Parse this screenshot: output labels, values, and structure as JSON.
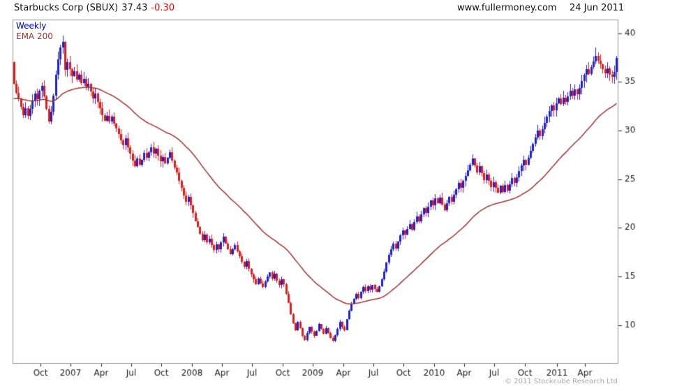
{
  "header": {
    "name": "Starbucks Corp (SBUX)",
    "price": "37.43",
    "change": "-0.30",
    "site": "www.fullermoney.com",
    "date": "24 Jun 2011"
  },
  "legend": {
    "timeframe": "Weekly",
    "ema_label": "EMA 200"
  },
  "footer": {
    "copyright": "© 2011 Stockcube Research Ltd"
  },
  "chart_data": {
    "type": "candlestick",
    "title": "Starbucks Corp (SBUX)",
    "symbol": "SBUX",
    "timeframe": "weekly",
    "last_price": 37.43,
    "change": -0.3,
    "grid": false,
    "y_axis": {
      "side": "right",
      "ticks": [
        40,
        35,
        30,
        25,
        20,
        15,
        10
      ],
      "min": 6.1,
      "max": 41.4
    },
    "x_axis": {
      "ticks": [
        [
          "Oct",
          12
        ],
        [
          "2007",
          25
        ],
        [
          "Apr",
          38
        ],
        [
          "Jul",
          51
        ],
        [
          "Oct",
          64
        ],
        [
          "2008",
          77
        ],
        [
          "Apr",
          90
        ],
        [
          "Jul",
          103
        ],
        [
          "Oct",
          116
        ],
        [
          "2009",
          129
        ],
        [
          "Apr",
          142
        ],
        [
          "Jul",
          155
        ],
        [
          "Oct",
          168
        ],
        [
          "2010",
          181
        ],
        [
          "Apr",
          194
        ],
        [
          "Jul",
          207
        ],
        [
          "Oct",
          220
        ],
        [
          "2011",
          234
        ],
        [
          "Apr",
          246
        ]
      ]
    },
    "first_open": 37.0,
    "weekly_closes": [
      34.8,
      33.9,
      33.2,
      32.4,
      31.6,
      32.3,
      31.5,
      32.2,
      33.0,
      33.8,
      33.2,
      34.1,
      34.6,
      33.5,
      32.2,
      30.9,
      31.9,
      33.6,
      35.7,
      37.3,
      38.5,
      39.1,
      36.2,
      37.0,
      36.3,
      35.6,
      36.1,
      35.2,
      35.7,
      34.9,
      35.3,
      34.5,
      34.8,
      34.0,
      33.3,
      33.8,
      32.9,
      32.3,
      31.6,
      31.0,
      31.5,
      30.9,
      31.4,
      30.7,
      30.2,
      29.6,
      29.0,
      28.5,
      29.2,
      28.3,
      27.6,
      26.9,
      26.3,
      27.1,
      26.5,
      27.0,
      27.7,
      27.2,
      27.8,
      28.3,
      27.6,
      28.1,
      27.4,
      26.8,
      27.3,
      26.6,
      27.2,
      27.8,
      26.9,
      26.2,
      25.7,
      24.8,
      24.1,
      23.3,
      22.7,
      23.2,
      22.3,
      21.5,
      20.7,
      20.1,
      19.4,
      18.7,
      19.3,
      18.5,
      18.9,
      18.2,
      17.7,
      18.3,
      17.8,
      18.5,
      19.1,
      18.4,
      17.8,
      17.3,
      17.8,
      18.2,
      17.6,
      17.1,
      16.5,
      16.0,
      16.6,
      15.8,
      15.2,
      14.7,
      14.2,
      14.8,
      14.3,
      13.9,
      14.5,
      15.0,
      15.4,
      14.8,
      15.3,
      14.6,
      14.1,
      14.7,
      14.2,
      13.2,
      12.3,
      11.1,
      10.2,
      9.5,
      10.3,
      9.7,
      8.9,
      8.5,
      9.2,
      9.8,
      9.3,
      8.9,
      9.4,
      10.1,
      9.6,
      9.1,
      9.7,
      9.2,
      8.7,
      8.4,
      9.0,
      9.6,
      10.3,
      9.8,
      9.5,
      10.6,
      11.5,
      12.2,
      12.7,
      13.2,
      12.8,
      13.4,
      13.9,
      13.5,
      14.0,
      13.6,
      14.1,
      13.7,
      13.4,
      14.0,
      14.7,
      15.5,
      16.4,
      17.2,
      17.8,
      18.4,
      17.9,
      18.6,
      19.2,
      19.7,
      19.3,
      19.9,
      20.4,
      19.8,
      20.6,
      21.2,
      20.7,
      21.4,
      22.0,
      21.5,
      22.2,
      22.8,
      22.3,
      23.0,
      22.5,
      23.1,
      22.4,
      21.8,
      22.5,
      23.2,
      22.7,
      23.4,
      24.0,
      24.6,
      24.1,
      24.8,
      25.3,
      25.9,
      26.5,
      27.1,
      26.4,
      25.7,
      26.3,
      25.6,
      24.9,
      25.5,
      24.8,
      24.2,
      24.7,
      24.1,
      23.6,
      24.3,
      23.7,
      24.4,
      23.8,
      24.5,
      25.1,
      24.6,
      25.2,
      25.8,
      26.4,
      27.0,
      26.5,
      27.2,
      27.9,
      28.6,
      29.3,
      30.0,
      29.4,
      30.1,
      30.8,
      31.4,
      32.0,
      32.6,
      32.1,
      32.8,
      33.3,
      32.7,
      33.4,
      32.9,
      33.5,
      34.1,
      33.6,
      34.2,
      33.7,
      34.4,
      35.1,
      35.7,
      36.3,
      35.8,
      36.5,
      37.1,
      37.7,
      37.2,
      36.8,
      36.3,
      35.9,
      36.4,
      35.7,
      35.5,
      36.0,
      37.43
    ],
    "ema": {
      "label": "EMA 200",
      "alpha": 0.043,
      "seed": 33.2,
      "color": "#993333"
    },
    "colors": {
      "up": "#2020cd",
      "down": "#dd1c1c",
      "axis_text": "#1a1a1a",
      "frame": "#999999"
    }
  }
}
